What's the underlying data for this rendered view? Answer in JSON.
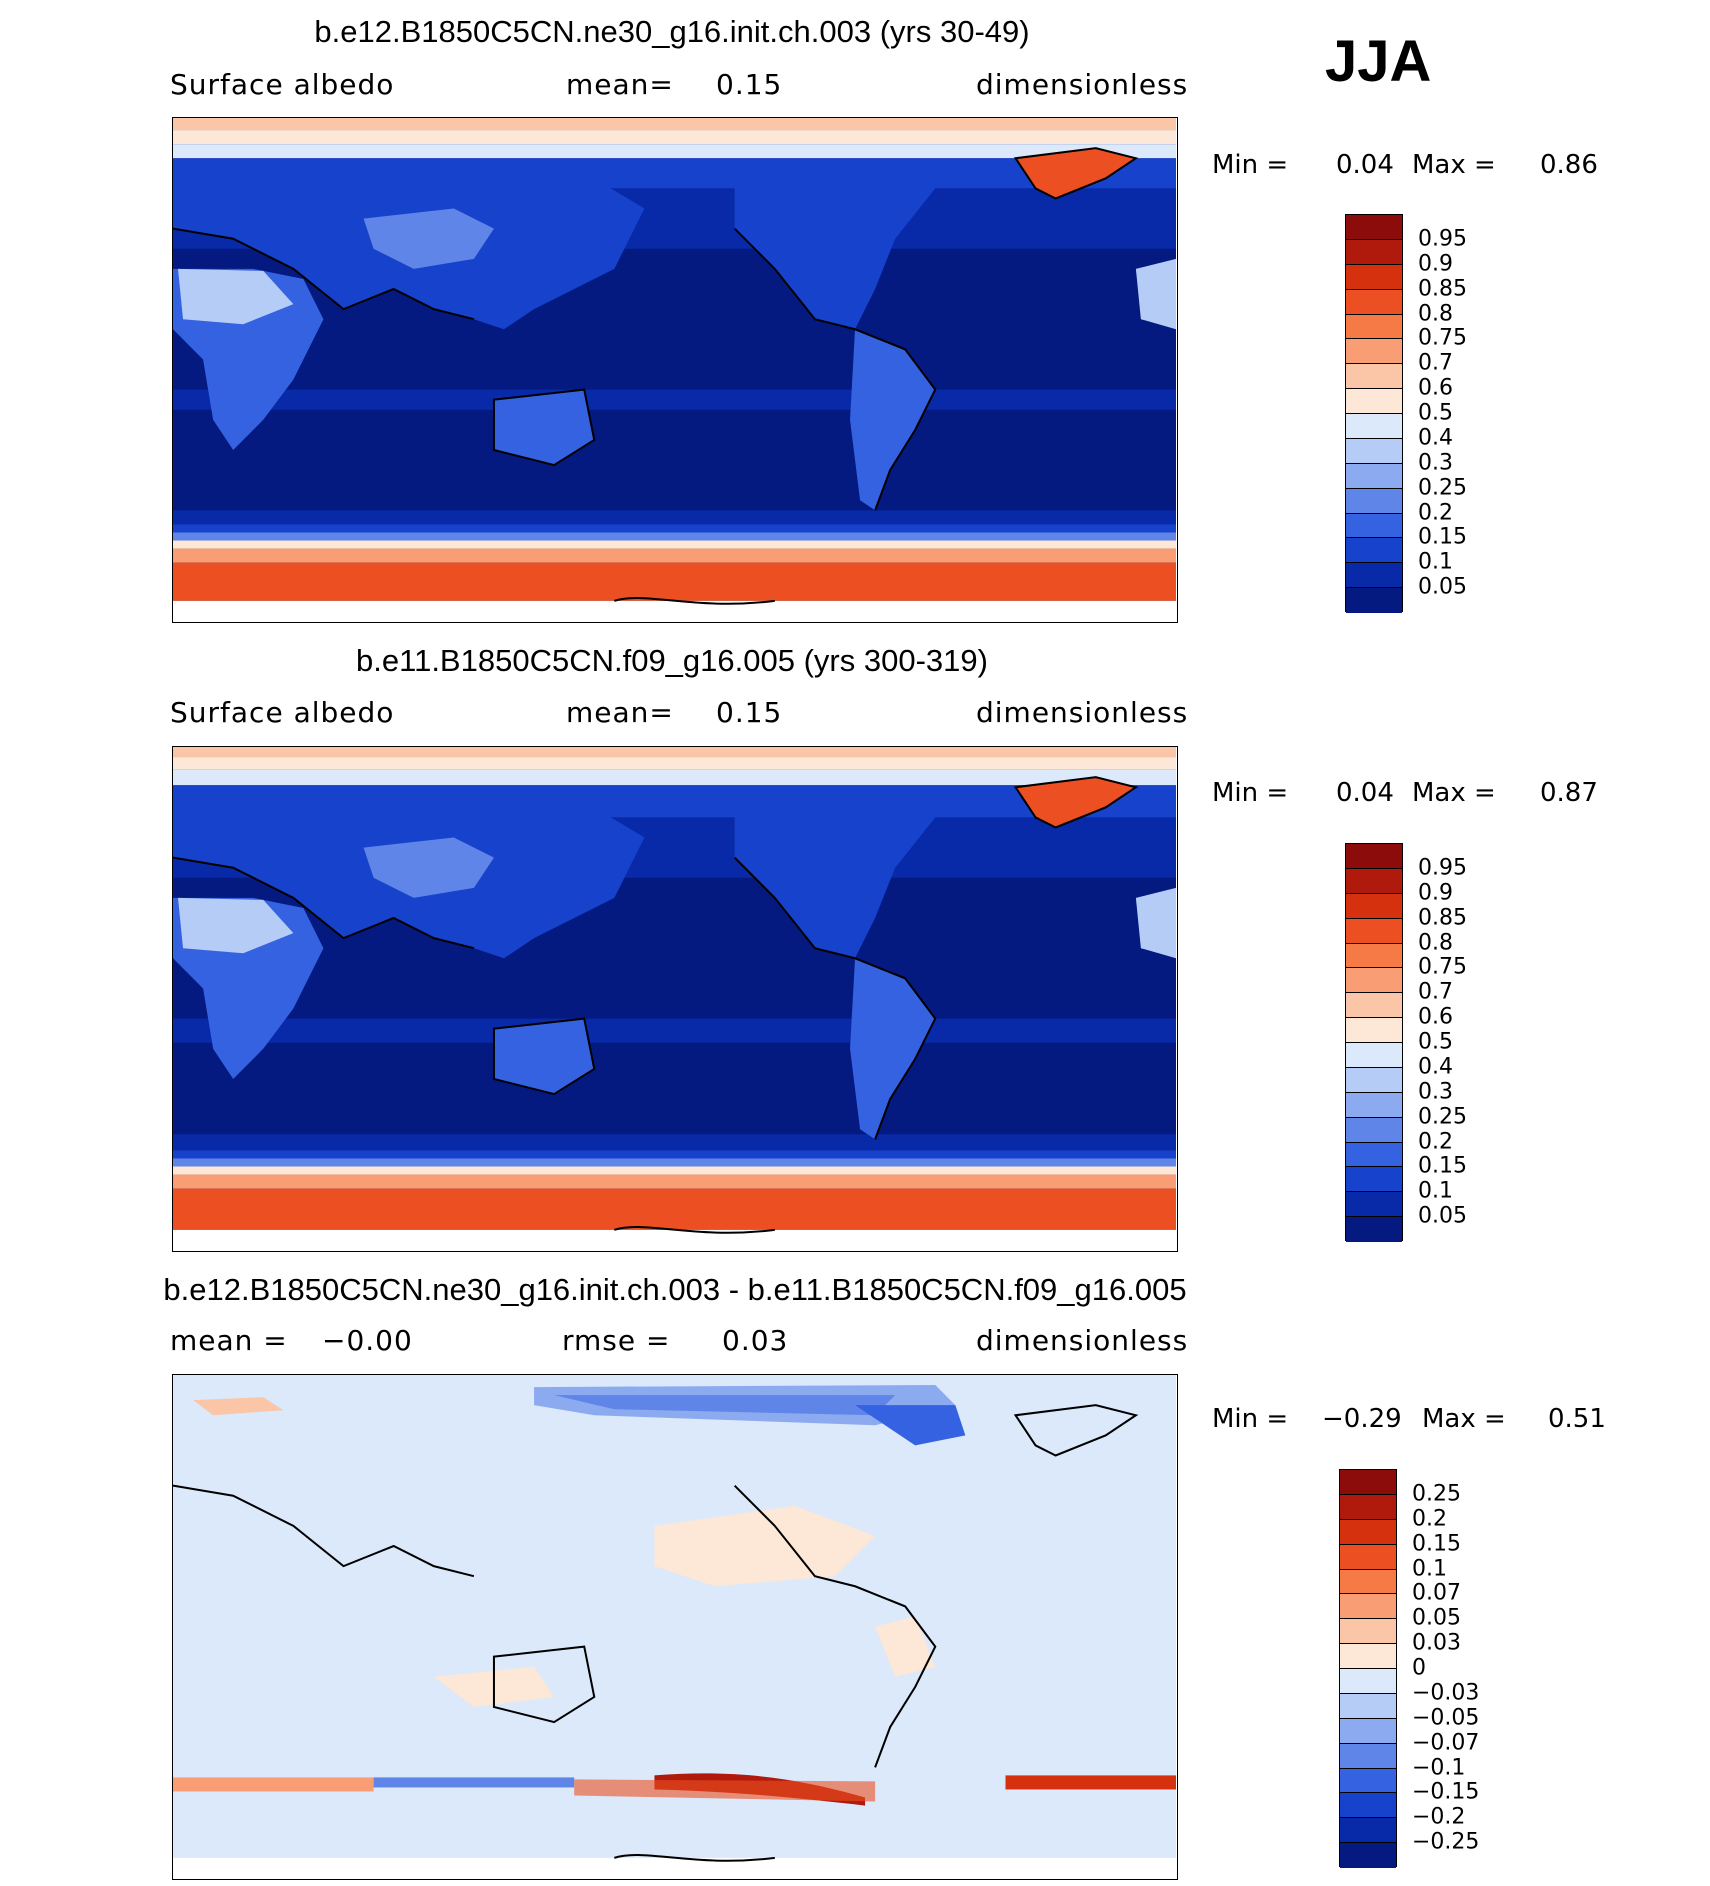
{
  "season": "JJA",
  "panels": [
    {
      "title": "b.e12.B1850C5CN.ne30_g16.init.ch.003 (yrs 30-49)",
      "left_label": "Surface albedo",
      "mid_label": "mean=",
      "mid_value": "0.15",
      "units": "dimensionless",
      "min_label": "Min =",
      "min_value": "0.04",
      "max_label": "Max =",
      "max_value": "0.86",
      "palette": "abs",
      "colorbar_labels": [
        "0.95",
        "0.9",
        "0.85",
        "0.8",
        "0.75",
        "0.7",
        "0.6",
        "0.5",
        "0.4",
        "0.3",
        "0.25",
        "0.2",
        "0.15",
        "0.1",
        "0.05"
      ]
    },
    {
      "title": "b.e11.B1850C5CN.f09_g16.005 (yrs 300-319)",
      "left_label": "Surface albedo",
      "mid_label": "mean=",
      "mid_value": "0.15",
      "units": "dimensionless",
      "min_label": "Min =",
      "min_value": "0.04",
      "max_label": "Max =",
      "max_value": "0.87",
      "palette": "abs",
      "colorbar_labels": [
        "0.95",
        "0.9",
        "0.85",
        "0.8",
        "0.75",
        "0.7",
        "0.6",
        "0.5",
        "0.4",
        "0.3",
        "0.25",
        "0.2",
        "0.15",
        "0.1",
        "0.05"
      ]
    },
    {
      "title": "b.e12.B1850C5CN.ne30_g16.init.ch.003 - b.e11.B1850C5CN.f09_g16.005",
      "left_label": "mean =",
      "left_value": "−0.00",
      "mid_label": "rmse =",
      "mid_value": "0.03",
      "units": "dimensionless",
      "min_label": "Min =",
      "min_value": "−0.29",
      "max_label": "Max =",
      "max_value": "0.51",
      "palette": "diff",
      "colorbar_labels": [
        "0.25",
        "0.2",
        "0.15",
        "0.1",
        "0.07",
        "0.05",
        "0.03",
        "0",
        "−0.03",
        "−0.05",
        "−0.07",
        "−0.1",
        "−0.15",
        "−0.2",
        "−0.25"
      ]
    }
  ],
  "colors": {
    "abs": [
      "#8c0c0c",
      "#b01a0c",
      "#d6310f",
      "#ec5022",
      "#f67a45",
      "#f99e74",
      "#fbc6a8",
      "#fde7d6",
      "#dbe9fb",
      "#b5cdf6",
      "#8caaf0",
      "#5f85e8",
      "#3562e0",
      "#1742cc",
      "#082aa8",
      "#041a80"
    ],
    "diff": [
      "#8c0c0c",
      "#b01a0c",
      "#d6310f",
      "#ec5022",
      "#f67a45",
      "#f99e74",
      "#fbc6a8",
      "#fde7d6",
      "#dbe9fb",
      "#b5cdf6",
      "#8caaf0",
      "#5f85e8",
      "#3562e0",
      "#1742cc",
      "#082aa8",
      "#041a80"
    ]
  }
}
